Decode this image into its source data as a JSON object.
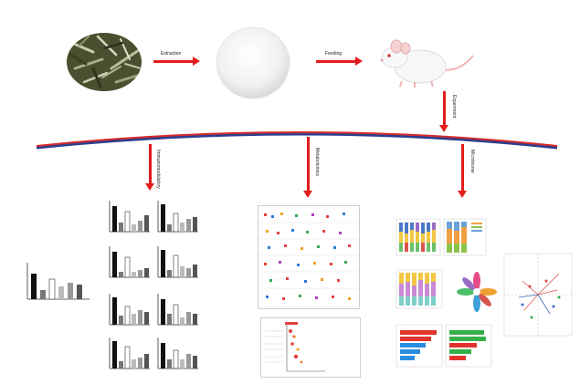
{
  "flow": {
    "step1_label": "Extraction",
    "step2_label": "Feeding",
    "step3_label": "Experiment"
  },
  "branches": {
    "left": "Immunomodulatory",
    "middle": "Metabolomics",
    "right": "Microbiome"
  },
  "colors": {
    "arrow": "#e31c1c",
    "timeline_top": "#d62a2a",
    "timeline_bottom": "#2b3f8f"
  },
  "icons": {
    "plant": "dried-herb-photo",
    "powder": "white-powder-photo",
    "animal": "white-mouse-photo"
  }
}
